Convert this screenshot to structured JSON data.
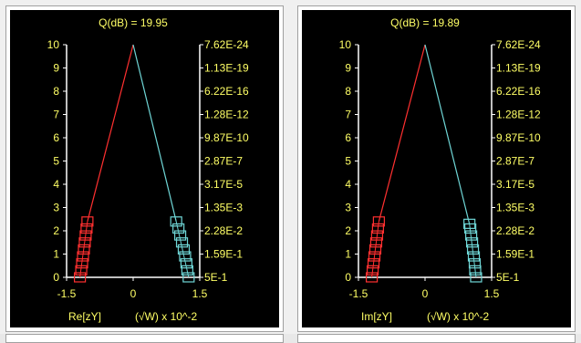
{
  "colors": {
    "background": "#000000",
    "text": "#ffff66",
    "axis": "#ffffff",
    "red_series": "#ff3030",
    "cyan_series": "#6fd6d6"
  },
  "panels": [
    {
      "title": "Q(dB) = 19.95",
      "xlabel": "Re[zY]",
      "unit_label": "(√W) x  10^-2",
      "left_ticks": [
        "0",
        "1",
        "2",
        "3",
        "4",
        "5",
        "6",
        "7",
        "8",
        "9",
        "10"
      ],
      "right_ticks": [
        "5E-1",
        "1.59E-1",
        "2.28E-2",
        "1.35E-3",
        "3.17E-5",
        "2.87E-7",
        "9.87E-10",
        "1.28E-12",
        "6.22E-16",
        "1.13E-19",
        "7.62E-24"
      ],
      "x_ticks": [
        "-1.5",
        "0",
        "1.5"
      ]
    },
    {
      "title": "Q(dB) = 19.89",
      "xlabel": "Im[zY]",
      "unit_label": "(√W) x  10^-2",
      "left_ticks": [
        "0",
        "1",
        "2",
        "3",
        "4",
        "5",
        "6",
        "7",
        "8",
        "9",
        "10"
      ],
      "right_ticks": [
        "5E-1",
        "1.59E-1",
        "2.28E-2",
        "1.35E-3",
        "3.17E-5",
        "2.87E-7",
        "9.87E-10",
        "1.28E-12",
        "6.22E-16",
        "1.13E-19",
        "7.62E-24"
      ],
      "x_ticks": [
        "-1.5",
        "0",
        "1.5"
      ]
    }
  ],
  "chart_data": [
    {
      "type": "scatter",
      "title": "Q(dB) = 19.95",
      "xlabel": "Re[zY]",
      "ylabel": "",
      "xlim": [
        -1.5,
        1.5
      ],
      "ylim": [
        0,
        10
      ],
      "series": [
        {
          "color": "#ff3030",
          "points": [
            [
              -1.2,
              0
            ],
            [
              -1.17,
              0.3
            ],
            [
              -1.15,
              0.6
            ],
            [
              -1.13,
              0.9
            ],
            [
              -1.11,
              1.2
            ],
            [
              -1.09,
              1.5
            ],
            [
              -1.07,
              1.8
            ],
            [
              -1.05,
              2.1
            ],
            [
              -1.03,
              2.4
            ]
          ],
          "line_to": [
            0,
            10
          ]
        },
        {
          "color": "#6fd6d6",
          "points": [
            [
              1.25,
              0
            ],
            [
              1.22,
              0.3
            ],
            [
              1.2,
              0.6
            ],
            [
              1.17,
              0.9
            ],
            [
              1.14,
              1.2
            ],
            [
              1.1,
              1.5
            ],
            [
              1.06,
              1.8
            ],
            [
              1.02,
              2.1
            ],
            [
              0.97,
              2.4
            ]
          ],
          "line_to": [
            0,
            10
          ]
        }
      ]
    },
    {
      "type": "scatter",
      "title": "Q(dB) = 19.89",
      "xlabel": "Im[zY]",
      "ylabel": "",
      "xlim": [
        -1.5,
        1.5
      ],
      "ylim": [
        0,
        10
      ],
      "series": [
        {
          "color": "#ff3030",
          "points": [
            [
              -1.2,
              0
            ],
            [
              -1.18,
              0.3
            ],
            [
              -1.16,
              0.6
            ],
            [
              -1.14,
              0.9
            ],
            [
              -1.12,
              1.2
            ],
            [
              -1.1,
              1.5
            ],
            [
              -1.08,
              1.8
            ],
            [
              -1.06,
              2.1
            ],
            [
              -1.04,
              2.4
            ]
          ],
          "line_to": [
            0,
            10
          ]
        },
        {
          "color": "#6fd6d6",
          "points": [
            [
              1.15,
              0
            ],
            [
              1.13,
              0.3
            ],
            [
              1.12,
              0.6
            ],
            [
              1.1,
              0.9
            ],
            [
              1.08,
              1.2
            ],
            [
              1.06,
              1.5
            ],
            [
              1.04,
              1.8
            ],
            [
              1.02,
              2.1
            ],
            [
              1.0,
              2.3
            ]
          ],
          "line_to": [
            0,
            10
          ]
        }
      ]
    }
  ]
}
